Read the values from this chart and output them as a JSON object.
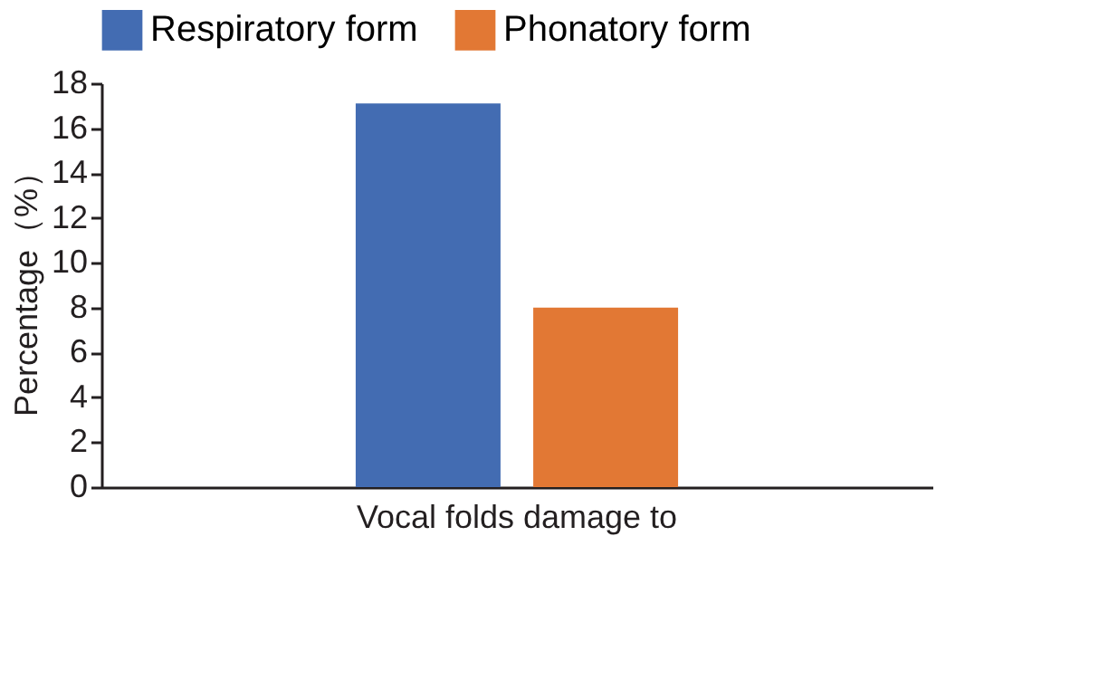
{
  "chart_data": {
    "type": "bar",
    "ylabel": "Percentage（%）",
    "categories": [
      "Vocal folds damage to"
    ],
    "series": [
      {
        "name": "Respiratory form",
        "color": "#436cb2",
        "values": [
          17.1
        ]
      },
      {
        "name": "Phonatory form",
        "color": "#e27834",
        "values": [
          8.0
        ]
      }
    ],
    "ylim": [
      0,
      18
    ],
    "yticks": [
      0,
      2,
      4,
      6,
      8,
      10,
      12,
      14,
      16,
      18
    ],
    "grid": false,
    "legend": "top"
  }
}
